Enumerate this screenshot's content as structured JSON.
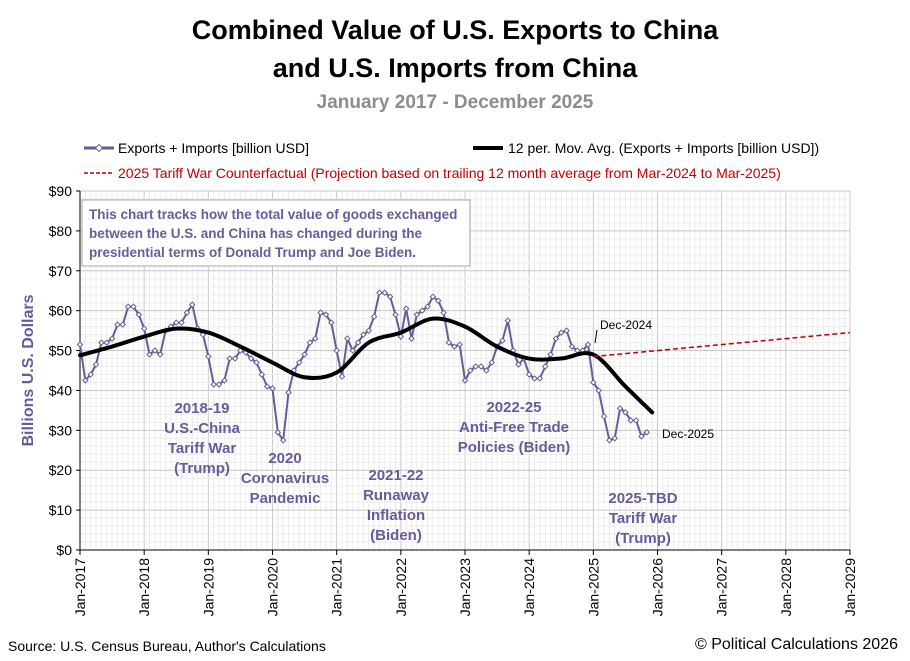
{
  "header": {
    "title_line1": "Combined Value of U.S. Exports to China",
    "title_line2": "and U.S. Imports from China",
    "subtitle": "January 2017 - December 2025"
  },
  "footer": {
    "source": "Source: U.S. Census Bureau, Author's Calculations",
    "copyright": "© Political Calculations 2026"
  },
  "colors": {
    "exports_imports": "#6a5a9a",
    "moving_avg": "#000000",
    "counterfactual": "#c00000",
    "annotation_text": "#6a5a9a",
    "grid": "#d9d9d9"
  },
  "chart_data": {
    "type": "line",
    "ylabel": "Billions U.S. Dollars",
    "xlabel": "",
    "ylim": [
      0,
      90
    ],
    "y_ticks": [
      0,
      10,
      20,
      30,
      40,
      50,
      60,
      70,
      80,
      90
    ],
    "y_tick_labels": [
      "$0",
      "$10",
      "$20",
      "$30",
      "$40",
      "$50",
      "$60",
      "$70",
      "$80",
      "$90"
    ],
    "x_range": [
      "Jan-2017",
      "Jan-2029"
    ],
    "x_tick_labels": [
      "Jan-2017",
      "Jan-2018",
      "Jan-2019",
      "Jan-2020",
      "Jan-2021",
      "Jan-2022",
      "Jan-2023",
      "Jan-2024",
      "Jan-2025",
      "Jan-2026",
      "Jan-2027",
      "Jan-2028",
      "Jan-2029"
    ],
    "grid": "on",
    "legend_placement": "top",
    "legend": [
      "Exports + Imports [billion USD]",
      "12 per. Mov. Avg. (Exports + Imports [billion USD])",
      "2025 Tariff War Counterfactual  (Projection based on trailing 12 month average from Mar-2024 to Mar-2025)"
    ],
    "series": [
      {
        "name": "Exports + Imports [billion USD]",
        "start": "Jan-2017",
        "values": [
          51.5,
          42.5,
          44,
          46.5,
          52,
          52,
          53,
          56.5,
          56.5,
          61,
          61,
          59,
          55.5,
          49,
          50,
          49,
          55,
          56,
          57,
          57,
          59.5,
          61.5,
          55.5,
          54,
          48.5,
          41.5,
          41.5,
          42.5,
          48,
          48,
          50,
          49.5,
          48,
          47,
          44,
          41,
          40.5,
          29.5,
          27.5,
          39.5,
          45,
          47,
          49,
          52,
          53,
          59.5,
          59,
          57,
          50,
          43.5,
          53,
          50,
          52,
          54,
          55,
          58.5,
          64.5,
          64.5,
          63.5,
          59,
          53.5,
          60.5,
          53,
          59,
          60,
          61,
          63.5,
          62.5,
          59.5,
          52,
          51,
          51.5,
          42.5,
          45,
          46,
          46,
          45,
          47,
          51,
          52.5,
          57.5,
          50,
          46.5,
          48,
          44,
          43,
          43,
          46,
          49,
          53,
          54.5,
          55,
          51,
          50,
          50,
          51.5,
          42,
          40,
          33.5,
          27.5,
          28,
          35.5,
          34.5,
          32.5,
          32.5,
          28.5,
          29.5
        ]
      },
      {
        "name": "12 per. Mov. Avg. (Exports + Imports [billion USD])",
        "points": [
          [
            "Jan-2017",
            48.8
          ],
          [
            "Jul-2017",
            51
          ],
          [
            "Jan-2018",
            53.5
          ],
          [
            "Jul-2018",
            55.5
          ],
          [
            "Jan-2019",
            54.5
          ],
          [
            "Jul-2019",
            51
          ],
          [
            "Jan-2020",
            47
          ],
          [
            "Jul-2020",
            43.3
          ],
          [
            "Jan-2021",
            44.5
          ],
          [
            "Jul-2021",
            52
          ],
          [
            "Jan-2022",
            54.5
          ],
          [
            "Jul-2022",
            58
          ],
          [
            "Jan-2023",
            56
          ],
          [
            "Jul-2023",
            51
          ],
          [
            "Jan-2024",
            48
          ],
          [
            "Jul-2024",
            48
          ],
          [
            "Jan-2025",
            49
          ],
          [
            "Jul-2025",
            41
          ],
          [
            "Dec-2025",
            34.5
          ]
        ]
      },
      {
        "name": "2025 Tariff War Counterfactual  (Projection based on trailing 12 month average from Mar-2024 to Mar-2025)",
        "points": [
          [
            "Jan-2025",
            48.5
          ],
          [
            "Jan-2029",
            54.5
          ]
        ]
      }
    ],
    "annotations": [
      {
        "lines": [
          "2018-19",
          "U.S.-China",
          "Tariff War",
          "(Trump)"
        ],
        "at": "Apr-2019"
      },
      {
        "lines": [
          "2020",
          "Coronavirus",
          "Pandemic"
        ],
        "at": "Mar-2020"
      },
      {
        "lines": [
          "2021-22",
          "Runaway",
          "Inflation",
          "(Biden)"
        ],
        "at": "Sep-2021"
      },
      {
        "lines": [
          "2022-25",
          "Anti-Free Trade",
          "Policies (Biden)"
        ],
        "at": "Nov-2023"
      },
      {
        "lines": [
          "2025-TBD",
          "Tariff War",
          "(Trump)"
        ],
        "at": "Aug-2025"
      },
      {
        "lines": [
          "Dec-2024"
        ],
        "kind": "point-label"
      },
      {
        "lines": [
          "Dec-2025"
        ],
        "kind": "point-label"
      }
    ],
    "note": "This chart tracks how the total value of goods exchanged between the U.S. and China has changed during the presidential terms of Donald Trump and Joe Biden."
  }
}
